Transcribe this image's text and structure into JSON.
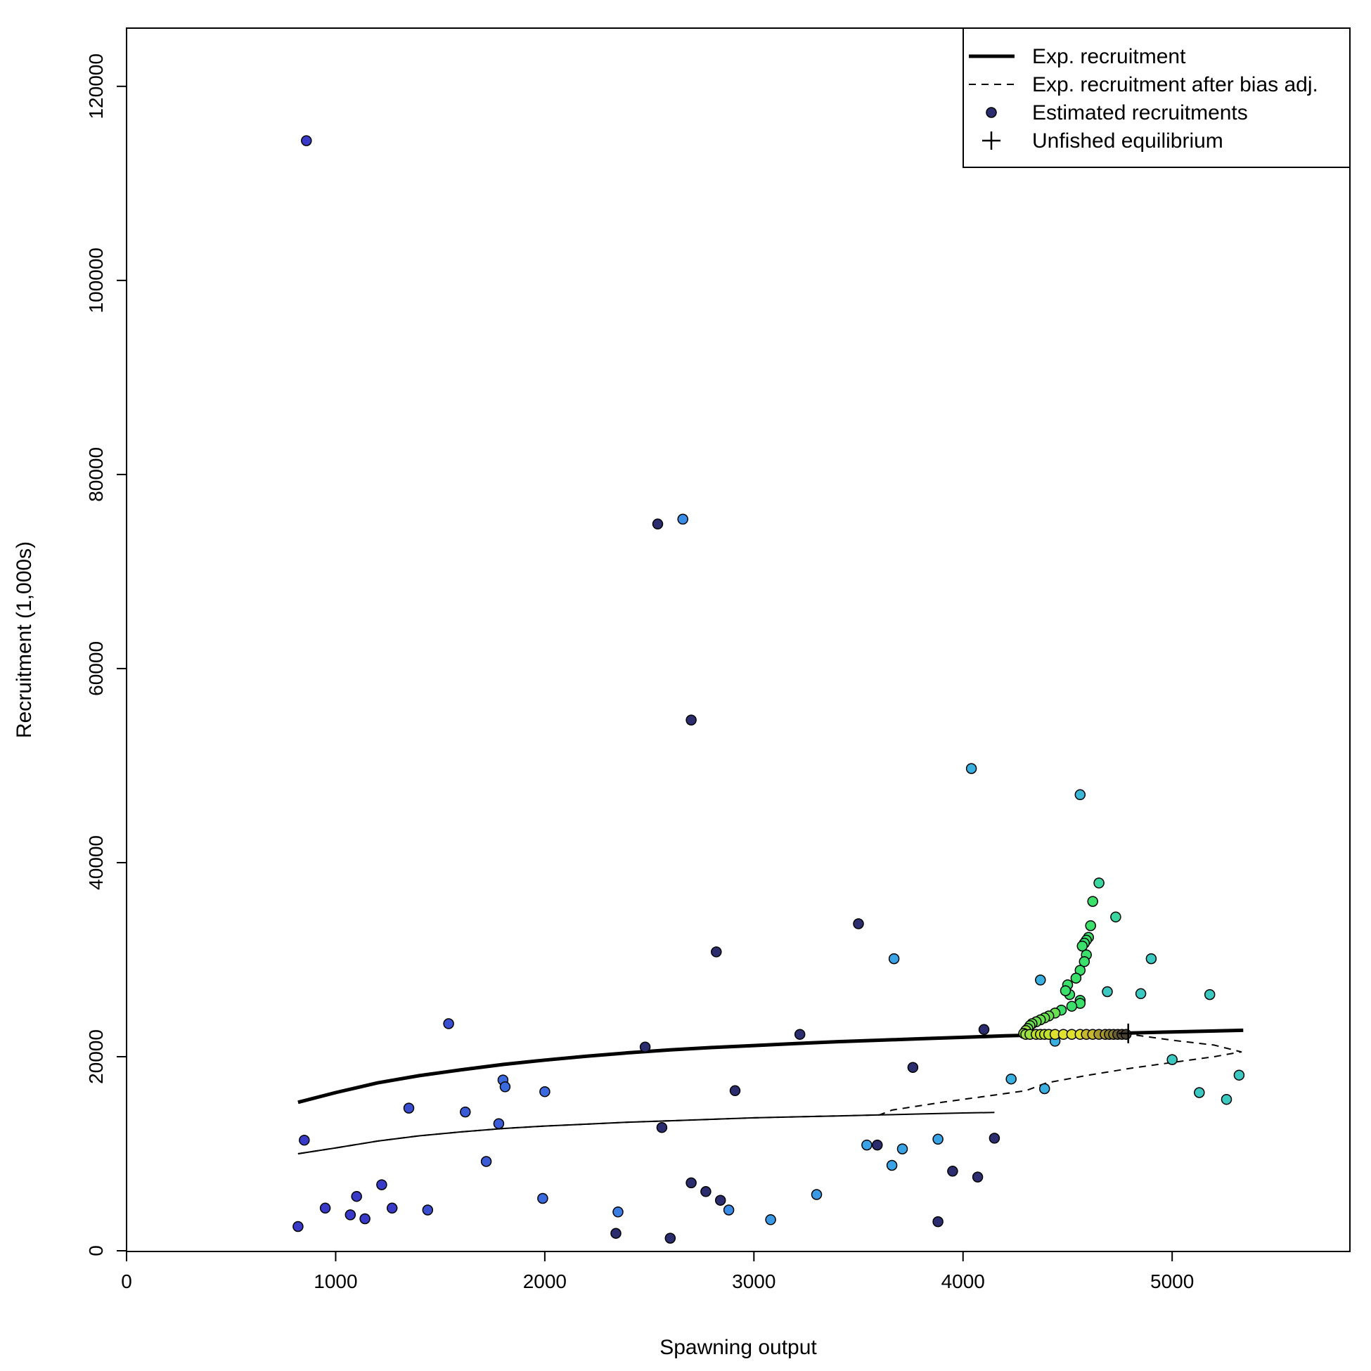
{
  "chart_data": {
    "type": "scatter",
    "xlabel": "Spawning output",
    "ylabel": "Recruitment (1,000s)",
    "xlim": [
      0,
      5850
    ],
    "ylim": [
      0,
      120000
    ],
    "x_ticks": [
      0,
      1000,
      2000,
      3000,
      4000,
      5000
    ],
    "y_ticks": [
      0,
      20000,
      40000,
      60000,
      80000,
      100000,
      120000
    ],
    "x_tick_labels": [
      "0",
      "1000",
      "2000",
      "3000",
      "4000",
      "5000"
    ],
    "y_tick_labels": [
      "0",
      "20000",
      "40000",
      "60000",
      "80000",
      "100000",
      "120000"
    ],
    "grid": false,
    "legend_position": "top-right",
    "legend": [
      {
        "label": "Exp. recruitment",
        "symbol": "thick-line"
      },
      {
        "label": "Exp. recruitment after bias adj.",
        "symbol": "dashed-line"
      },
      {
        "label": "Estimated recruitments",
        "symbol": "filled-circle",
        "color": "#2b2d6e"
      },
      {
        "label": "Unfished equilibrium",
        "symbol": "plus"
      }
    ],
    "series": [
      {
        "name": "Exp. recruitment",
        "style": "solid-thick",
        "color": "#000000",
        "x": [
          820,
          1000,
          1200,
          1400,
          1600,
          1800,
          2000,
          2200,
          2400,
          2600,
          2800,
          3000,
          3200,
          3400,
          3600,
          3800,
          4000,
          4200,
          4400,
          4600,
          4800,
          5000,
          5200,
          5340
        ],
        "y": [
          15300,
          16300,
          17300,
          18050,
          18650,
          19200,
          19650,
          20050,
          20400,
          20700,
          20950,
          21150,
          21350,
          21550,
          21700,
          21850,
          22000,
          22150,
          22250,
          22350,
          22450,
          22550,
          22650,
          22720
        ]
      },
      {
        "name": "Exp. recruitment after bias adj.",
        "style": "dashed",
        "color": "#000000",
        "x": [
          820,
          1000,
          1200,
          1400,
          1600,
          1800,
          2000,
          2200,
          2400,
          2600,
          2800,
          3000,
          3200,
          3400,
          3600,
          3660,
          3900,
          4100,
          4300,
          4400,
          4600,
          4800,
          5000,
          5200,
          5330,
          5200,
          5000,
          4800
        ],
        "y": [
          10000,
          10600,
          11300,
          11850,
          12250,
          12600,
          12850,
          13050,
          13250,
          13400,
          13550,
          13700,
          13800,
          13900,
          14000,
          14500,
          15300,
          15900,
          16500,
          17300,
          18100,
          18800,
          19400,
          20000,
          20500,
          21200,
          21700,
          22300
        ]
      },
      {
        "name": "",
        "style": "solid-thin",
        "color": "#000000",
        "x": [
          820,
          1000,
          1200,
          1400,
          1600,
          1800,
          2000,
          2200,
          2400,
          2600,
          2800,
          3000,
          3200,
          3400,
          3600,
          3800,
          4000,
          4150
        ],
        "y": [
          10000,
          10600,
          11300,
          11850,
          12250,
          12600,
          12850,
          13050,
          13250,
          13400,
          13550,
          13700,
          13800,
          13900,
          14000,
          14100,
          14200,
          14250
        ]
      }
    ],
    "points": {
      "name": "Estimated recruitments",
      "stroke": "#000000",
      "data": [
        {
          "x": 860,
          "y": 114400,
          "color": "#3a3ac9"
        },
        {
          "x": 850,
          "y": 11400,
          "color": "#3a3ac9"
        },
        {
          "x": 820,
          "y": 2500,
          "color": "#3a3ac9"
        },
        {
          "x": 950,
          "y": 4400,
          "color": "#3a3ac9"
        },
        {
          "x": 1070,
          "y": 3700,
          "color": "#3a3ac9"
        },
        {
          "x": 1100,
          "y": 5600,
          "color": "#3a3ac9"
        },
        {
          "x": 1140,
          "y": 3300,
          "color": "#3a3ac9"
        },
        {
          "x": 1220,
          "y": 6800,
          "color": "#3a3ac9"
        },
        {
          "x": 1270,
          "y": 4400,
          "color": "#3a3ac9"
        },
        {
          "x": 1350,
          "y": 14700,
          "color": "#3a4fd0"
        },
        {
          "x": 1440,
          "y": 4200,
          "color": "#3a4fd0"
        },
        {
          "x": 1540,
          "y": 23400,
          "color": "#3a4fd0"
        },
        {
          "x": 1620,
          "y": 14300,
          "color": "#3a5ad6"
        },
        {
          "x": 1720,
          "y": 9200,
          "color": "#3a5ad6"
        },
        {
          "x": 1780,
          "y": 13100,
          "color": "#3a5ad6"
        },
        {
          "x": 1800,
          "y": 17600,
          "color": "#3a6add"
        },
        {
          "x": 1810,
          "y": 16900,
          "color": "#3a6add"
        },
        {
          "x": 1990,
          "y": 5400,
          "color": "#3a6add"
        },
        {
          "x": 2000,
          "y": 16400,
          "color": "#3a6add"
        },
        {
          "x": 2340,
          "y": 1800,
          "color": "#2b2d6e"
        },
        {
          "x": 2350,
          "y": 4000,
          "color": "#3a7ee3"
        },
        {
          "x": 2480,
          "y": 21000,
          "color": "#2b2d6e"
        },
        {
          "x": 2540,
          "y": 74900,
          "color": "#2b2d6e"
        },
        {
          "x": 2560,
          "y": 12700,
          "color": "#2b2d6e"
        },
        {
          "x": 2600,
          "y": 1300,
          "color": "#2b2d6e"
        },
        {
          "x": 2660,
          "y": 75400,
          "color": "#3a8de6"
        },
        {
          "x": 2700,
          "y": 54700,
          "color": "#2b2d6e"
        },
        {
          "x": 2700,
          "y": 7000,
          "color": "#2b2d6e"
        },
        {
          "x": 2770,
          "y": 6100,
          "color": "#2b2d6e"
        },
        {
          "x": 2820,
          "y": 30800,
          "color": "#2b2d6e"
        },
        {
          "x": 2840,
          "y": 5200,
          "color": "#2b2d6e"
        },
        {
          "x": 2880,
          "y": 4200,
          "color": "#3a8de6"
        },
        {
          "x": 2910,
          "y": 16500,
          "color": "#2b2d6e"
        },
        {
          "x": 3080,
          "y": 3200,
          "color": "#3a9ae6"
        },
        {
          "x": 3220,
          "y": 22300,
          "color": "#2b2d6e"
        },
        {
          "x": 3300,
          "y": 5800,
          "color": "#3a9ae6"
        },
        {
          "x": 3500,
          "y": 33700,
          "color": "#2b2d6e"
        },
        {
          "x": 3540,
          "y": 10900,
          "color": "#3aa3e6"
        },
        {
          "x": 3590,
          "y": 10900,
          "color": "#2b2d6e"
        },
        {
          "x": 3660,
          "y": 8800,
          "color": "#3aa3e6"
        },
        {
          "x": 3670,
          "y": 30100,
          "color": "#3aa3e6"
        },
        {
          "x": 3710,
          "y": 10500,
          "color": "#3aa3e6"
        },
        {
          "x": 3760,
          "y": 18900,
          "color": "#2b2d6e"
        },
        {
          "x": 3880,
          "y": 11500,
          "color": "#3aa3e6"
        },
        {
          "x": 3880,
          "y": 3000,
          "color": "#2b2d6e"
        },
        {
          "x": 3950,
          "y": 8200,
          "color": "#2b2d6e"
        },
        {
          "x": 4040,
          "y": 49700,
          "color": "#3ab0e0"
        },
        {
          "x": 4070,
          "y": 7600,
          "color": "#2b2d6e"
        },
        {
          "x": 4100,
          "y": 22800,
          "color": "#2b2d6e"
        },
        {
          "x": 4150,
          "y": 11600,
          "color": "#2b2d6e"
        },
        {
          "x": 4230,
          "y": 17700,
          "color": "#3ab0e0"
        },
        {
          "x": 4370,
          "y": 27900,
          "color": "#3ab0e0"
        },
        {
          "x": 4390,
          "y": 16700,
          "color": "#3ab0e0"
        },
        {
          "x": 4440,
          "y": 21600,
          "color": "#3ab0e0"
        },
        {
          "x": 4560,
          "y": 47000,
          "color": "#3ab8d6"
        },
        {
          "x": 4650,
          "y": 37900,
          "color": "#3ad8a0"
        },
        {
          "x": 4690,
          "y": 26700,
          "color": "#3ac8c0"
        },
        {
          "x": 4730,
          "y": 34400,
          "color": "#3ad8a0"
        },
        {
          "x": 4850,
          "y": 26500,
          "color": "#3ac8c0"
        },
        {
          "x": 4900,
          "y": 30100,
          "color": "#3ac8c0"
        },
        {
          "x": 5000,
          "y": 19700,
          "color": "#3ac8c0"
        },
        {
          "x": 5130,
          "y": 16300,
          "color": "#3ac8c0"
        },
        {
          "x": 5180,
          "y": 26400,
          "color": "#3ac8c0"
        },
        {
          "x": 5260,
          "y": 15600,
          "color": "#3ac8c0"
        },
        {
          "x": 5320,
          "y": 18100,
          "color": "#3ac8c0"
        },
        {
          "x": 4620,
          "y": 36000,
          "color": "#3ae06a"
        },
        {
          "x": 4610,
          "y": 33500,
          "color": "#3ae06a"
        },
        {
          "x": 4600,
          "y": 32300,
          "color": "#3ae06a"
        },
        {
          "x": 4590,
          "y": 32000,
          "color": "#3ae06a"
        },
        {
          "x": 4580,
          "y": 31700,
          "color": "#3ae06a"
        },
        {
          "x": 4570,
          "y": 31400,
          "color": "#3ae06a"
        },
        {
          "x": 4590,
          "y": 30500,
          "color": "#3ae06a"
        },
        {
          "x": 4580,
          "y": 29800,
          "color": "#3ae06a"
        },
        {
          "x": 4560,
          "y": 28900,
          "color": "#3ae06a"
        },
        {
          "x": 4560,
          "y": 25800,
          "color": "#3ae06a"
        },
        {
          "x": 4560,
          "y": 25500,
          "color": "#3ae06a"
        },
        {
          "x": 4540,
          "y": 28100,
          "color": "#3ae06a"
        },
        {
          "x": 4500,
          "y": 27400,
          "color": "#3ae06a"
        },
        {
          "x": 4510,
          "y": 26400,
          "color": "#3ae06a"
        },
        {
          "x": 4490,
          "y": 26800,
          "color": "#3ae06a"
        },
        {
          "x": 4520,
          "y": 25200,
          "color": "#3ae06a"
        },
        {
          "x": 4470,
          "y": 24800,
          "color": "#3ae06a"
        },
        {
          "x": 4440,
          "y": 24500,
          "color": "#6ae050"
        },
        {
          "x": 4410,
          "y": 24200,
          "color": "#6ae050"
        },
        {
          "x": 4390,
          "y": 24000,
          "color": "#6ae050"
        },
        {
          "x": 4370,
          "y": 23800,
          "color": "#6ae050"
        },
        {
          "x": 4350,
          "y": 23600,
          "color": "#6ae050"
        },
        {
          "x": 4330,
          "y": 23400,
          "color": "#6ae050"
        },
        {
          "x": 4320,
          "y": 23200,
          "color": "#6ae050"
        },
        {
          "x": 4310,
          "y": 22900,
          "color": "#6ae050"
        },
        {
          "x": 4300,
          "y": 22700,
          "color": "#9ae040"
        },
        {
          "x": 4290,
          "y": 22400,
          "color": "#9ae040"
        },
        {
          "x": 4300,
          "y": 22300,
          "color": "#9ae040"
        },
        {
          "x": 4320,
          "y": 22300,
          "color": "#9ae040"
        },
        {
          "x": 4350,
          "y": 22300,
          "color": "#c0e030"
        },
        {
          "x": 4370,
          "y": 22300,
          "color": "#c0e030"
        },
        {
          "x": 4390,
          "y": 22300,
          "color": "#c0e030"
        },
        {
          "x": 4410,
          "y": 22300,
          "color": "#c0e030"
        },
        {
          "x": 4440,
          "y": 22300,
          "color": "#e0e030"
        },
        {
          "x": 4480,
          "y": 22300,
          "color": "#e0e030"
        },
        {
          "x": 4520,
          "y": 22300,
          "color": "#e0e030"
        },
        {
          "x": 4560,
          "y": 22300,
          "color": "#e0e030"
        },
        {
          "x": 4590,
          "y": 22300,
          "color": "#c8b830"
        },
        {
          "x": 4620,
          "y": 22300,
          "color": "#c8b830"
        },
        {
          "x": 4650,
          "y": 22300,
          "color": "#a89a30"
        },
        {
          "x": 4680,
          "y": 22300,
          "color": "#a89a30"
        },
        {
          "x": 4700,
          "y": 22300,
          "color": "#8a8030"
        },
        {
          "x": 4720,
          "y": 22300,
          "color": "#8a8030"
        },
        {
          "x": 4740,
          "y": 22300,
          "color": "#6a6030"
        },
        {
          "x": 4760,
          "y": 22300,
          "color": "#5a5030"
        },
        {
          "x": 4780,
          "y": 22300,
          "color": "#4a4230"
        }
      ]
    },
    "unfished_equilibrium": {
      "x": 4790,
      "y": 22400
    }
  }
}
